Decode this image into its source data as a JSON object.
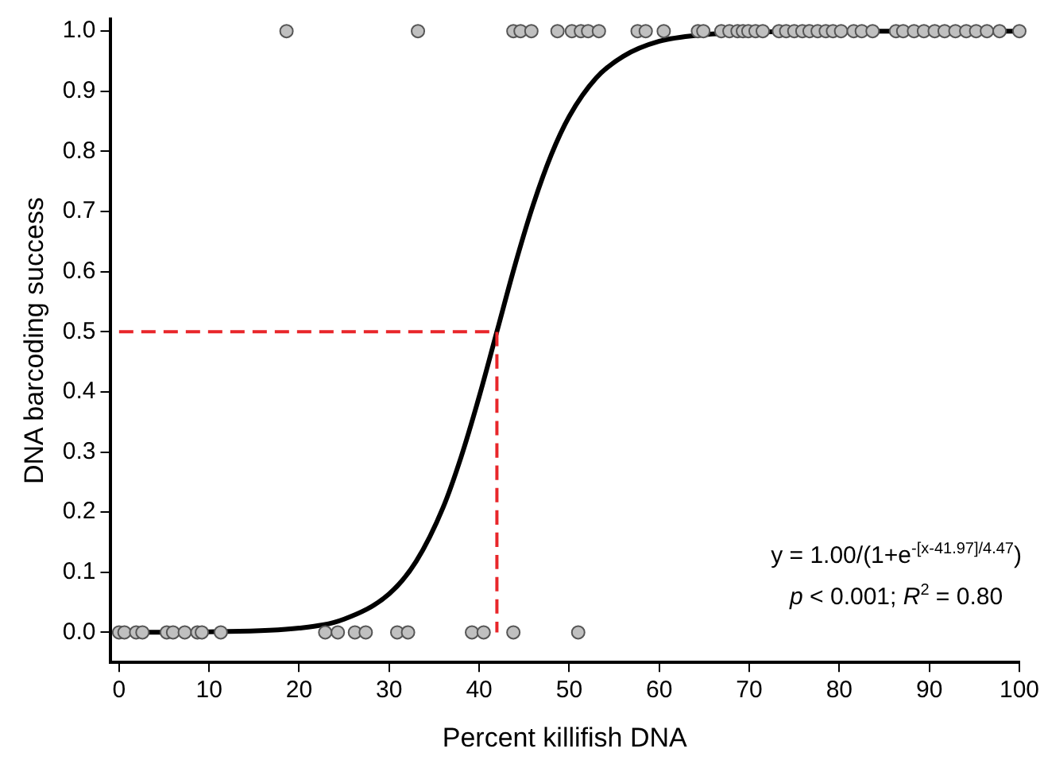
{
  "chart_data": {
    "type": "scatter",
    "xlabel": "Percent killifish DNA",
    "ylabel": "DNA barcoding success",
    "xlim": [
      -1,
      100
    ],
    "ylim": [
      -0.05,
      1.02
    ],
    "xticks": [
      0,
      10,
      20,
      30,
      40,
      50,
      60,
      70,
      80,
      90,
      100
    ],
    "yticks": [
      {
        "value": 0,
        "label": "0.0"
      },
      {
        "value": 0.1,
        "label": "0.1"
      },
      {
        "value": 0.2,
        "label": "0.2"
      },
      {
        "value": 0.3,
        "label": "0.3"
      },
      {
        "value": 0.4,
        "label": "0.4"
      },
      {
        "value": 0.5,
        "label": "0.5"
      },
      {
        "value": 0.6,
        "label": "0.6"
      },
      {
        "value": 0.7,
        "label": "0.7"
      },
      {
        "value": 0.8,
        "label": "0.8"
      },
      {
        "value": 0.9,
        "label": "0.9"
      },
      {
        "value": 1,
        "label": "1.0"
      }
    ],
    "grid": false,
    "legend": false,
    "marker": "circle",
    "series": [
      {
        "type": "line",
        "color": "#000000",
        "marker": "none",
        "line_style": "solid",
        "x": [
          0,
          10,
          20,
          25,
          30,
          33,
          36,
          38,
          40,
          42,
          44,
          46,
          48,
          50,
          53,
          56,
          60,
          65,
          70,
          80,
          100
        ],
        "values": [
          0,
          0.001,
          0.007,
          0.022,
          0.064,
          0.118,
          0.208,
          0.292,
          0.392,
          0.502,
          0.612,
          0.711,
          0.794,
          0.858,
          0.922,
          0.958,
          0.983,
          0.994,
          0.998,
          1,
          1
        ]
      },
      {
        "type": "line",
        "color": "#e8262a",
        "marker": "none",
        "line_style": "dashed",
        "x": [
          0,
          41.97,
          41.97
        ],
        "values": [
          0.5,
          0.5,
          0
        ]
      },
      {
        "color": "#c0c0c0",
        "x": [
          0,
          0.6,
          1.9,
          2.6,
          5.3,
          6.0,
          7.3,
          8.7,
          9.2,
          11.3,
          22.9,
          24.3,
          26.2,
          27.4,
          30.9,
          32.1,
          39.2,
          40.5,
          43.8,
          51.0
        ],
        "values": [
          0,
          0,
          0,
          0,
          0,
          0,
          0,
          0,
          0,
          0,
          0,
          0,
          0,
          0,
          0,
          0,
          0,
          0,
          0,
          0
        ]
      },
      {
        "color": "#c0c0c0",
        "x": [
          18.6,
          33.2,
          43.8,
          44.6,
          45.8,
          48.7,
          50.3,
          51.3,
          52.1,
          53.3,
          57.6,
          58.5,
          60.5,
          64.3,
          64.9,
          66.9,
          67.8,
          68.7,
          69.3,
          69.9,
          70.7,
          71.5,
          73.3,
          74.1,
          75.0,
          75.9,
          76.7,
          77.6,
          78.5,
          79.3,
          80.2,
          81.6,
          82.5,
          83.7,
          86.3,
          87.1,
          88.3,
          89.4,
          90.6,
          91.7,
          92.9,
          94.1,
          95.2,
          96.4,
          97.8,
          100
        ],
        "values": [
          1,
          1,
          1,
          1,
          1,
          1,
          1,
          1,
          1,
          1,
          1,
          1,
          1,
          1,
          1,
          1,
          1,
          1,
          1,
          1,
          1,
          1,
          1,
          1,
          1,
          1,
          1,
          1,
          1,
          1,
          1,
          1,
          1,
          1,
          1,
          1,
          1,
          1,
          1,
          1,
          1,
          1,
          1,
          1,
          1,
          1
        ]
      }
    ],
    "annotations": [
      "y = 1.00/(1+e$^{-[x-41.97]/4.47}$)",
      "p < 0.001; R$^{2}$ = 0.80"
    ]
  }
}
